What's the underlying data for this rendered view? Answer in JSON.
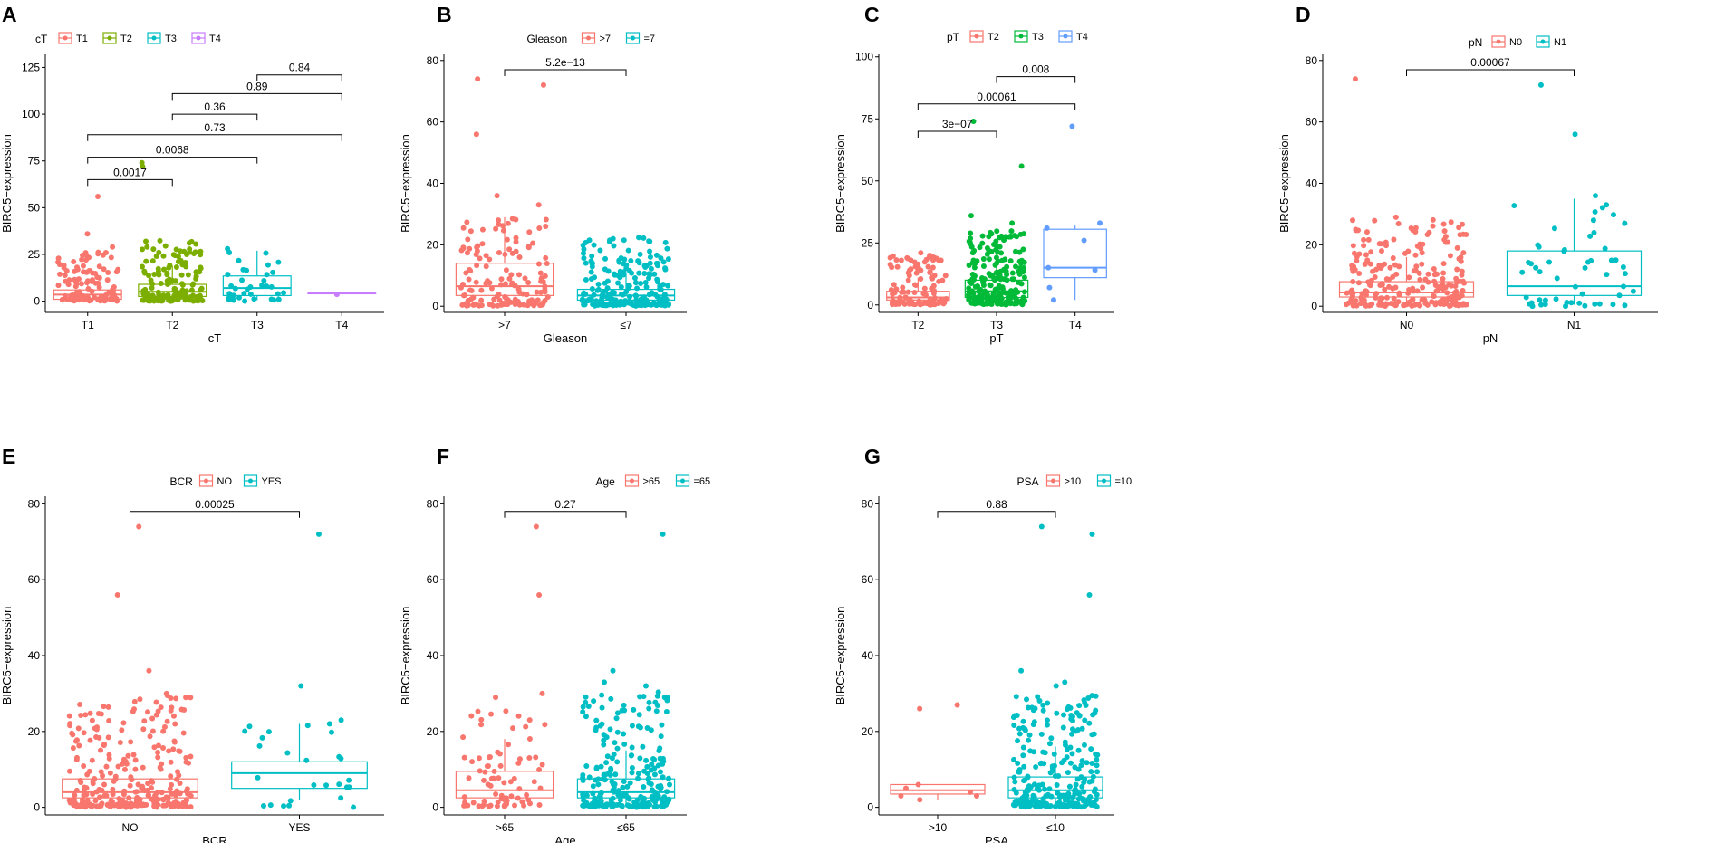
{
  "ylabel_common": "BIRC5−expression",
  "chart_data": [
    {
      "id": "A",
      "letter": "A",
      "type": "box-scatter",
      "legend_title": "cT",
      "legend": [
        "T1",
        "T2",
        "T3",
        "T4"
      ],
      "colors": [
        "#F8766D",
        "#7CAE00",
        "#00BFC4",
        "#C77CFF"
      ],
      "xlabel": "cT",
      "ylabel": "BIRC5−expression",
      "categories": [
        "T1",
        "T2",
        "T3",
        "T4"
      ],
      "ylim": [
        -6,
        132
      ],
      "yticks": [
        0,
        25,
        50,
        75,
        100,
        125
      ],
      "boxes": [
        {
          "q1": 1,
          "median": 3.5,
          "q3": 6,
          "lo": 0,
          "hi": 12
        },
        {
          "q1": 2.5,
          "median": 5,
          "q3": 9,
          "lo": 0,
          "hi": 19
        },
        {
          "q1": 3,
          "median": 7,
          "q3": 13.5,
          "lo": 0.5,
          "hi": 27
        },
        {
          "q1": 4.2,
          "median": 4.2,
          "q3": 4.2,
          "lo": 4.2,
          "hi": 4.2
        }
      ],
      "points": [
        {
          "n": 110,
          "max": 26,
          "extra": [
            56,
            36,
            29
          ]
        },
        {
          "n": 150,
          "max": 32,
          "extra": [
            74,
            72,
            32,
            29
          ]
        },
        {
          "n": 35,
          "max": 28,
          "extra": [
            28,
            26
          ]
        },
        {
          "n": 1,
          "max": 4.2,
          "extra": []
        }
      ],
      "comparisons": [
        {
          "label": "0.84",
          "a": 2,
          "b": 3,
          "y": 121
        },
        {
          "label": "0.89",
          "a": 1,
          "b": 3,
          "y": 111
        },
        {
          "label": "0.36",
          "a": 1,
          "b": 2,
          "y": 100
        },
        {
          "label": "0.73",
          "a": 0,
          "b": 3,
          "y": 89
        },
        {
          "label": "0.0068",
          "a": 0,
          "b": 2,
          "y": 77
        },
        {
          "label": "0.0017",
          "a": 0,
          "b": 1,
          "y": 65
        }
      ]
    },
    {
      "id": "B",
      "letter": "B",
      "type": "box-scatter",
      "legend_title": "Gleason",
      "legend": [
        ">7",
        "=7"
      ],
      "colors": [
        "#F8766D",
        "#00BFC4"
      ],
      "xlabel": "Gleason",
      "ylabel": "BIRC5−expression",
      "categories": [
        ">7",
        "≤7"
      ],
      "ylim": [
        -2,
        82
      ],
      "yticks": [
        0,
        20,
        40,
        60,
        80
      ],
      "boxes": [
        {
          "q1": 3.5,
          "median": 6.5,
          "q3": 14,
          "lo": 0,
          "hi": 29
        },
        {
          "q1": 2,
          "median": 3.5,
          "q3": 5.5,
          "lo": 0,
          "hi": 11
        }
      ],
      "points": [
        {
          "n": 150,
          "max": 30,
          "extra": [
            74,
            72,
            56,
            36,
            33
          ]
        },
        {
          "n": 230,
          "max": 22,
          "extra": [
            22,
            21
          ]
        }
      ],
      "comparisons": [
        {
          "label": "5.2e−13",
          "a": 0,
          "b": 1,
          "y": 77
        }
      ]
    },
    {
      "id": "C",
      "letter": "C",
      "type": "box-scatter",
      "legend_title": "pT",
      "legend": [
        "T2",
        "T3",
        "T4"
      ],
      "colors": [
        "#F8766D",
        "#00BA38",
        "#619CFF"
      ],
      "xlabel": "pT",
      "ylabel": "BIRC5−expression",
      "categories": [
        "T2",
        "T3",
        "T4"
      ],
      "ylim": [
        -3,
        101
      ],
      "yticks": [
        0,
        25,
        50,
        75,
        100
      ],
      "boxes": [
        {
          "q1": 2,
          "median": 3,
          "q3": 5.5,
          "lo": 0,
          "hi": 11
        },
        {
          "q1": 3,
          "median": 5.5,
          "q3": 10,
          "lo": 0,
          "hi": 21
        },
        {
          "q1": 11,
          "median": 15,
          "q3": 30.5,
          "lo": 2,
          "hi": 32
        }
      ],
      "points": [
        {
          "n": 110,
          "max": 20,
          "extra": [
            21,
            18
          ]
        },
        {
          "n": 220,
          "max": 30,
          "extra": [
            74,
            56,
            36,
            33
          ]
        },
        {
          "n": 0,
          "max": 0,
          "extra": [
            72,
            33,
            31,
            26,
            15,
            14,
            7,
            2
          ]
        }
      ],
      "comparisons": [
        {
          "label": "0.008",
          "a": 1,
          "b": 2,
          "y": 92
        },
        {
          "label": "0.00061",
          "a": 0,
          "b": 2,
          "y": 81
        },
        {
          "label": "3e−07",
          "a": 0,
          "b": 1,
          "y": 70
        }
      ]
    },
    {
      "id": "D",
      "letter": "D",
      "type": "box-scatter",
      "legend_title": "pN",
      "legend": [
        "N0",
        "N1"
      ],
      "colors": [
        "#F8766D",
        "#00BFC4"
      ],
      "xlabel": "pN",
      "ylabel": "BIRC5−expression",
      "categories": [
        "N0",
        "N1"
      ],
      "ylim": [
        -2,
        82
      ],
      "yticks": [
        0,
        20,
        40,
        60,
        80
      ],
      "boxes": [
        {
          "q1": 3,
          "median": 4.5,
          "q3": 8,
          "lo": 0,
          "hi": 16
        },
        {
          "q1": 3.5,
          "median": 6.5,
          "q3": 18,
          "lo": 0.5,
          "hi": 35
        }
      ],
      "points": [
        {
          "n": 260,
          "max": 28,
          "extra": [
            74,
            29,
            28
          ]
        },
        {
          "n": 50,
          "max": 33,
          "extra": [
            72,
            56,
            36,
            33,
            28,
            27
          ]
        }
      ],
      "comparisons": [
        {
          "label": "0.00067",
          "a": 0,
          "b": 1,
          "y": 77
        }
      ]
    },
    {
      "id": "E",
      "letter": "E",
      "type": "box-scatter",
      "legend_title": "BCR",
      "legend": [
        "NO",
        "YES"
      ],
      "colors": [
        "#F8766D",
        "#00BFC4"
      ],
      "xlabel": "BCR",
      "ylabel": "BIRC5−expression",
      "categories": [
        "NO",
        "YES"
      ],
      "ylim": [
        -2,
        82
      ],
      "yticks": [
        0,
        20,
        40,
        60,
        80
      ],
      "boxes": [
        {
          "q1": 2.5,
          "median": 4,
          "q3": 7.5,
          "lo": 0,
          "hi": 15
        },
        {
          "q1": 5,
          "median": 9,
          "q3": 12,
          "lo": 2,
          "hi": 22
        }
      ],
      "points": [
        {
          "n": 280,
          "max": 29,
          "extra": [
            74,
            56,
            36,
            30
          ]
        },
        {
          "n": 25,
          "max": 23,
          "extra": [
            72,
            32,
            23,
            22
          ]
        }
      ],
      "comparisons": [
        {
          "label": "0.00025",
          "a": 0,
          "b": 1,
          "y": 78
        }
      ]
    },
    {
      "id": "F",
      "letter": "F",
      "type": "box-scatter",
      "legend_title": "Age",
      "legend": [
        ">65",
        "=65"
      ],
      "colors": [
        "#F8766D",
        "#00BFC4"
      ],
      "xlabel": "Age",
      "ylabel": "BIRC5−expression",
      "categories": [
        ">65",
        "≤65"
      ],
      "ylim": [
        -2,
        82
      ],
      "yticks": [
        0,
        20,
        40,
        60,
        80
      ],
      "boxes": [
        {
          "q1": 2.5,
          "median": 4.5,
          "q3": 9.5,
          "lo": 0,
          "hi": 18
        },
        {
          "q1": 2.5,
          "median": 4,
          "q3": 7.5,
          "lo": 0,
          "hi": 15
        }
      ],
      "points": [
        {
          "n": 80,
          "max": 25,
          "extra": [
            74,
            56,
            30,
            29
          ]
        },
        {
          "n": 240,
          "max": 30,
          "extra": [
            72,
            36,
            33,
            32
          ]
        }
      ],
      "comparisons": [
        {
          "label": "0.27",
          "a": 0,
          "b": 1,
          "y": 78
        }
      ]
    },
    {
      "id": "G",
      "letter": "G",
      "type": "box-scatter",
      "legend_title": "PSA",
      "legend": [
        ">10",
        "=10"
      ],
      "colors": [
        "#F8766D",
        "#00BFC4"
      ],
      "xlabel": "PSA",
      "ylabel": "BIRC5−expression",
      "categories": [
        ">10",
        "≤10"
      ],
      "ylim": [
        -2,
        82
      ],
      "yticks": [
        0,
        20,
        40,
        60,
        80
      ],
      "boxes": [
        {
          "q1": 3.5,
          "median": 4.5,
          "q3": 6,
          "lo": 2,
          "hi": 6
        },
        {
          "q1": 2.5,
          "median": 4.5,
          "q3": 8,
          "lo": 0,
          "hi": 16
        }
      ],
      "points": [
        {
          "n": 0,
          "max": 0,
          "extra": [
            27,
            26,
            6,
            5,
            4,
            3,
            3,
            2
          ]
        },
        {
          "n": 280,
          "max": 30,
          "extra": [
            74,
            72,
            56,
            36,
            33,
            32
          ]
        }
      ],
      "comparisons": [
        {
          "label": "0.88",
          "a": 0,
          "b": 1,
          "y": 78
        }
      ]
    }
  ]
}
